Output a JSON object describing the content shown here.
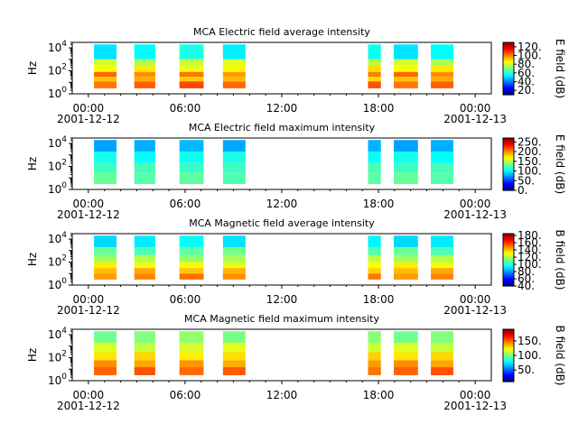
{
  "chart_data": [
    {
      "type": "heatmap",
      "title": "MCA  Electric field average intensity",
      "ylabel": "Hz",
      "y_scale": "log",
      "ylim": [
        1,
        30000
      ],
      "y_ticks": [
        {
          "base": "10",
          "exp": "0",
          "value": 1
        },
        {
          "base": "10",
          "exp": "2",
          "value": 100
        },
        {
          "base": "10",
          "exp": "4",
          "value": 10000
        }
      ],
      "x_ticks": [
        "00:00",
        "06:00",
        "12:00",
        "18:00",
        "00:00"
      ],
      "x_tick_hours": [
        0,
        6,
        12,
        18,
        24
      ],
      "x_dates": [
        "2001-12-12",
        "2001-12-13"
      ],
      "xlim_hours": [
        -1,
        25
      ],
      "colorbar": {
        "label": "E field (dB)",
        "min": 10,
        "max": 130,
        "ticks": [
          "120.",
          "100.",
          "80.",
          "60.",
          "40.",
          "20."
        ],
        "tick_values": [
          120,
          100,
          80,
          60,
          40,
          20
        ]
      },
      "data_intervals_hours": [
        [
          0.35,
          1.75
        ],
        [
          2.85,
          4.15
        ],
        [
          5.65,
          7.15
        ],
        [
          8.35,
          9.75
        ],
        [
          17.35,
          18.15
        ],
        [
          18.95,
          20.45
        ],
        [
          21.25,
          22.65
        ]
      ],
      "freq_levels_dB": [
        {
          "f_lo": 1000,
          "f_hi": 20000,
          "db": 55
        },
        {
          "f_lo": 300,
          "f_hi": 1000,
          "db": 78
        },
        {
          "f_lo": 80,
          "f_hi": 300,
          "db": 86
        },
        {
          "f_lo": 30,
          "f_hi": 80,
          "db": 100
        },
        {
          "f_lo": 12,
          "f_hi": 30,
          "db": 92
        },
        {
          "f_lo": 3,
          "f_hi": 12,
          "db": 104
        }
      ]
    },
    {
      "type": "heatmap",
      "title": "MCA  Electric field maximum intensity",
      "ylabel": "Hz",
      "y_scale": "log",
      "ylim": [
        1,
        30000
      ],
      "y_ticks": [
        {
          "base": "10",
          "exp": "0",
          "value": 1
        },
        {
          "base": "10",
          "exp": "2",
          "value": 100
        },
        {
          "base": "10",
          "exp": "4",
          "value": 10000
        }
      ],
      "x_ticks": [
        "00:00",
        "06:00",
        "12:00",
        "18:00",
        "00:00"
      ],
      "x_tick_hours": [
        0,
        6,
        12,
        18,
        24
      ],
      "x_dates": [
        "2001-12-12",
        "2001-12-13"
      ],
      "xlim_hours": [
        -1,
        25
      ],
      "colorbar": {
        "label": "E field (dB)",
        "min": 0,
        "max": 270,
        "ticks": [
          "250.",
          "200.",
          "150.",
          "100.",
          "50.",
          "0."
        ],
        "tick_values": [
          250,
          200,
          150,
          100,
          50,
          0
        ]
      },
      "data_intervals_hours": [
        [
          0.35,
          1.75
        ],
        [
          2.85,
          4.15
        ],
        [
          5.65,
          7.15
        ],
        [
          8.35,
          9.75
        ],
        [
          17.35,
          18.15
        ],
        [
          18.95,
          20.45
        ],
        [
          21.25,
          22.65
        ]
      ],
      "freq_levels_dB": [
        {
          "f_lo": 2000,
          "f_hi": 20000,
          "db": 80
        },
        {
          "f_lo": 200,
          "f_hi": 2000,
          "db": 105
        },
        {
          "f_lo": 30,
          "f_hi": 200,
          "db": 118
        },
        {
          "f_lo": 3,
          "f_hi": 30,
          "db": 125
        }
      ]
    },
    {
      "type": "heatmap",
      "title": "MCA  Magnetic field average intensity",
      "ylabel": "Hz",
      "y_scale": "log",
      "ylim": [
        1,
        30000
      ],
      "y_ticks": [
        {
          "base": "10",
          "exp": "0",
          "value": 1
        },
        {
          "base": "10",
          "exp": "2",
          "value": 100
        },
        {
          "base": "10",
          "exp": "4",
          "value": 10000
        }
      ],
      "x_ticks": [
        "00:00",
        "06:00",
        "12:00",
        "18:00",
        "00:00"
      ],
      "x_tick_hours": [
        0,
        6,
        12,
        18,
        24
      ],
      "x_dates": [
        "2001-12-12",
        "2001-12-13"
      ],
      "xlim_hours": [
        -1,
        25
      ],
      "colorbar": {
        "label": "B field (dB)",
        "min": 40,
        "max": 185,
        "ticks": [
          "180.",
          "160.",
          "140.",
          "120.",
          "100.",
          "80.",
          "60.",
          "40."
        ],
        "tick_values": [
          180,
          160,
          140,
          120,
          100,
          80,
          60,
          40
        ]
      },
      "data_intervals_hours": [
        [
          0.35,
          1.75
        ],
        [
          2.85,
          4.15
        ],
        [
          5.65,
          7.15
        ],
        [
          8.35,
          9.75
        ],
        [
          17.35,
          18.15
        ],
        [
          18.95,
          20.45
        ],
        [
          21.25,
          22.65
        ]
      ],
      "freq_levels_dB": [
        {
          "f_lo": 2000,
          "f_hi": 20000,
          "db": 92
        },
        {
          "f_lo": 400,
          "f_hi": 2000,
          "db": 108
        },
        {
          "f_lo": 100,
          "f_hi": 400,
          "db": 118
        },
        {
          "f_lo": 30,
          "f_hi": 100,
          "db": 130
        },
        {
          "f_lo": 10,
          "f_hi": 30,
          "db": 140
        },
        {
          "f_lo": 3,
          "f_hi": 10,
          "db": 148
        }
      ]
    },
    {
      "type": "heatmap",
      "title": "MCA  Magnetic field maximum intensity",
      "ylabel": "Hz",
      "y_scale": "log",
      "ylim": [
        1,
        30000
      ],
      "y_ticks": [
        {
          "base": "10",
          "exp": "0",
          "value": 1
        },
        {
          "base": "10",
          "exp": "2",
          "value": 100
        },
        {
          "base": "10",
          "exp": "4",
          "value": 10000
        }
      ],
      "x_ticks": [
        "00:00",
        "06:00",
        "12:00",
        "18:00",
        "00:00"
      ],
      "x_tick_hours": [
        0,
        6,
        12,
        18,
        24
      ],
      "x_dates": [
        "2001-12-12",
        "2001-12-13"
      ],
      "xlim_hours": [
        -1,
        25
      ],
      "colorbar": {
        "label": "B field (dB)",
        "min": 10,
        "max": 190,
        "ticks": [
          "150.",
          "100.",
          "50."
        ],
        "tick_values": [
          150,
          100,
          50
        ]
      },
      "data_intervals_hours": [
        [
          0.35,
          1.75
        ],
        [
          2.85,
          4.15
        ],
        [
          5.65,
          7.15
        ],
        [
          8.35,
          9.75
        ],
        [
          17.35,
          18.15
        ],
        [
          18.95,
          20.45
        ],
        [
          21.25,
          22.65
        ]
      ],
      "freq_levels_dB": [
        {
          "f_lo": 2000,
          "f_hi": 20000,
          "db": 100
        },
        {
          "f_lo": 300,
          "f_hi": 2000,
          "db": 115
        },
        {
          "f_lo": 60,
          "f_hi": 300,
          "db": 128
        },
        {
          "f_lo": 15,
          "f_hi": 60,
          "db": 140
        },
        {
          "f_lo": 3,
          "f_hi": 15,
          "db": 150
        }
      ]
    }
  ]
}
